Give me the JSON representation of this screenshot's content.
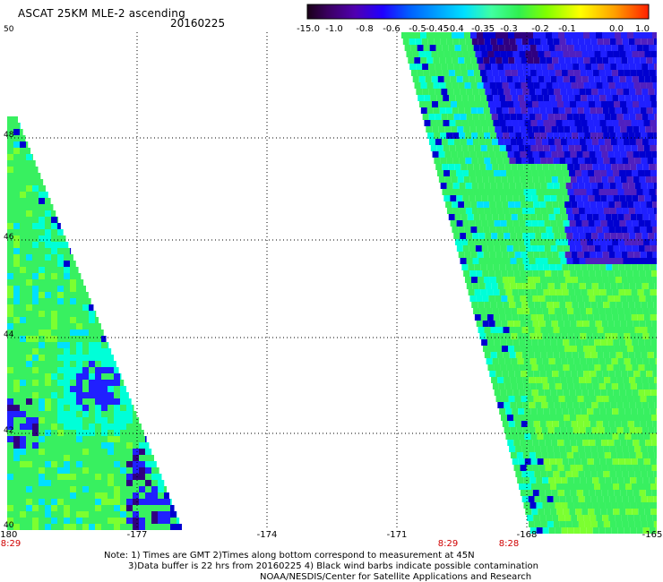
{
  "header": {
    "title": "ASCAT 25KM MLE-2 ascending",
    "date": "20160225"
  },
  "colorbar": {
    "labels": [
      "-15.0",
      "-1.0",
      "-0.8",
      "-0.6",
      "-0.5",
      "-0.45",
      "-0.4",
      "-0.35",
      "-0.3",
      "-0.2",
      "-0.1",
      "0.0",
      "1.0"
    ],
    "colors": [
      "#2a0030",
      "#4a0090",
      "#2000e0",
      "#0050ff",
      "#0098ff",
      "#00e0ff",
      "#40ffb0",
      "#38f060",
      "#60ff00",
      "#c8ff00",
      "#ffff00",
      "#ffa000",
      "#ff3000"
    ]
  },
  "map": {
    "lat_labels": [
      "50",
      "48",
      "46",
      "44",
      "42",
      "40"
    ],
    "lon_labels": [
      "-180",
      "-177",
      "-174",
      "-171",
      "-168",
      "-165"
    ],
    "time_labels": [
      "8:29",
      "8:29",
      "8:28"
    ],
    "swath_colors": {
      "green": "#38f060",
      "lightgreen": "#7cff30",
      "cyan": "#00ffd8",
      "skyblue": "#00e0ff",
      "blue": "#2020ff",
      "darkblue": "#0000d0",
      "purple": "#5020c0",
      "navy": "#300080"
    }
  },
  "notes": {
    "line1": "Note: 1) Times are GMT 2)Times along bottom correspond to measurement at 45N",
    "line2": "3)Data buffer is 22 hrs from 20160225 4) Black wind barbs indicate possible contamination",
    "line3": "NOAA/NESDIS/Center for Satellite Applications and Research"
  }
}
